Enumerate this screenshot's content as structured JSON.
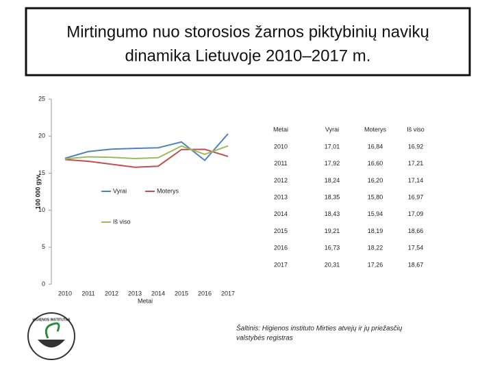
{
  "chart_data": {
    "type": "line",
    "title": [
      "Mirtingumo nuo storosios žarnos piktybinių navikų",
      "dinamika Lietuvoje 2010–2017 m."
    ],
    "x_label": "Metai",
    "y_label": "100 000 gyv.",
    "categories": [
      "2010",
      "2011",
      "2012",
      "2013",
      "2014",
      "2015",
      "2016",
      "2017"
    ],
    "series": [
      {
        "name": "Vyrai",
        "color": "#4f81bd",
        "values": [
          17.01,
          17.92,
          18.24,
          18.35,
          18.43,
          19.21,
          16.73,
          20.31
        ]
      },
      {
        "name": "Moterys",
        "color": "#c0504d",
        "values": [
          16.84,
          16.6,
          16.2,
          15.8,
          15.94,
          18.19,
          18.22,
          17.26
        ]
      },
      {
        "name": "Iš viso",
        "color": "#9bbb59",
        "values": [
          16.92,
          17.21,
          17.14,
          16.97,
          17.09,
          18.66,
          17.54,
          18.67
        ]
      }
    ],
    "ylim": [
      0,
      25
    ],
    "yticks": [
      0,
      5,
      10,
      15,
      20,
      25
    ]
  },
  "table": {
    "header": [
      "Metai",
      "Vyrai",
      "Moterys",
      "Iš viso"
    ],
    "rows": [
      [
        "2010",
        "17,01",
        "16,84",
        "16,92"
      ],
      [
        "2011",
        "17,92",
        "16,60",
        "17,21"
      ],
      [
        "2012",
        "18,24",
        "16,20",
        "17,14"
      ],
      [
        "2013",
        "18,35",
        "15,80",
        "16,97"
      ],
      [
        "2014",
        "18,43",
        "15,94",
        "17,09"
      ],
      [
        "2015",
        "19,21",
        "18,19",
        "18,66"
      ],
      [
        "2016",
        "16,73",
        "18,22",
        "17,54"
      ],
      [
        "2017",
        "20,31",
        "17,26",
        "18,67"
      ]
    ]
  },
  "source": [
    "Šaltinis: Higienos instituto Mirties atvejų ir jų priežasčių",
    "valstybės registras"
  ],
  "logo_text": "HIGIENOS INSTITUTAS"
}
